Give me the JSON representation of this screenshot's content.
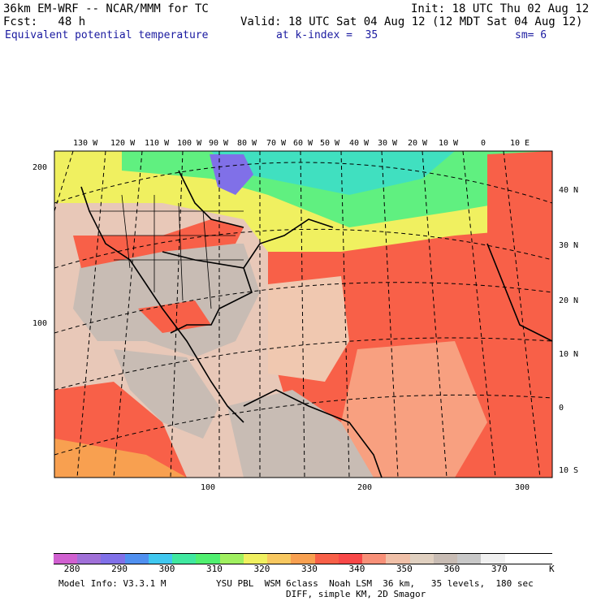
{
  "header": {
    "model": "36km EM-WRF -- NCAR/MMM for TC",
    "init": "Init: 18 UTC Thu 02 Aug 12",
    "fcst": "Fcst:   48 h",
    "valid": "Valid: 18 UTC Sat 04 Aug 12 (12 MDT Sat 04 Aug 12)",
    "field": "Equivalent potential temperature",
    "level": "at k-index =  35",
    "smooth": "sm= 6"
  },
  "map": {
    "lon_labels": [
      "130 W",
      "120 W",
      "110 W",
      "100 W",
      "90 W",
      "80 W",
      "70 W",
      "60 W",
      "50 W",
      "40 W",
      "30 W",
      "20 W",
      "10 W",
      "0",
      "10 E"
    ],
    "lat_labels": [
      "40 N",
      "30 N",
      "20 N",
      "10 N",
      "0",
      "10 S"
    ],
    "left_axis": [
      "200",
      "100"
    ],
    "bottom_axis": [
      "100",
      "200",
      "300"
    ]
  },
  "colorbar": {
    "colors": [
      "#d060d0",
      "#a070d8",
      "#8070e8",
      "#5090f0",
      "#40c8f0",
      "#40e8a0",
      "#50f070",
      "#a0f060",
      "#f0f060",
      "#f8c860",
      "#f8a050",
      "#f86048",
      "#f84848",
      "#f89078",
      "#f0c0a8",
      "#e0d0c0",
      "#c8bcb4",
      "#c8c8c8",
      "#f0f0f0",
      "#ffffff",
      "#ffffff"
    ],
    "labels": [
      "280",
      "290",
      "300",
      "310",
      "320",
      "330",
      "340",
      "350",
      "360",
      "370"
    ],
    "unit": "K"
  },
  "footer": {
    "line1_left": "Model Info: V3.3.1 M",
    "line1_right": "YSU PBL  WSM 6class  Noah LSM  36 km,   35 levels,  180 sec",
    "line2": "DIFF, simple KM, 2D Smagor"
  }
}
